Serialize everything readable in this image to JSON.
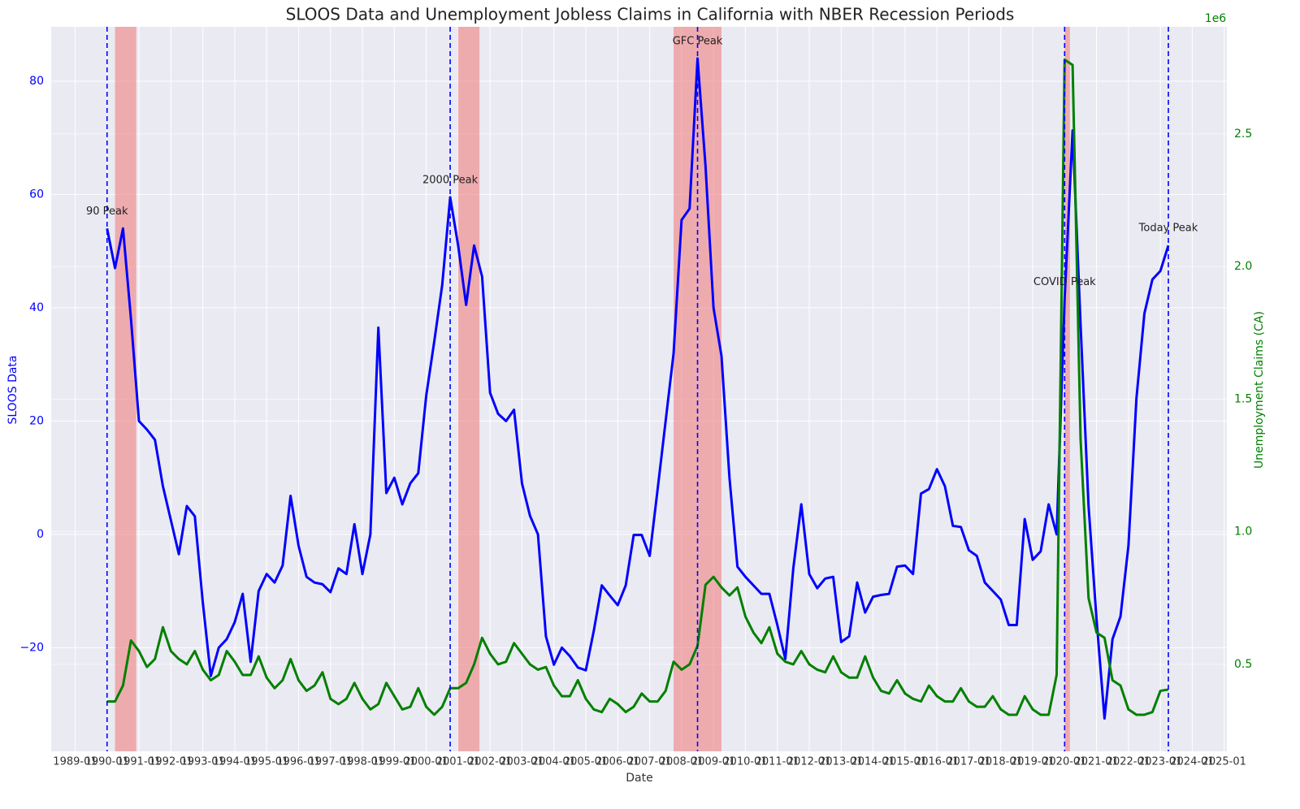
{
  "chart_data": {
    "type": "line",
    "title": "SLOOS Data and Unemployment Jobless Claims in California with NBER Recession Periods",
    "x_label": "Date",
    "y_label": "SLOOS Data",
    "y2_label": "Unemployment Claims (CA)",
    "y2_offset_label": "1e6",
    "background": "#eaeaf2",
    "grid": true,
    "xlim": [
      "1988-04",
      "2025-02"
    ],
    "xticks": [
      "1989-01",
      "1990-01",
      "1991-01",
      "1992-01",
      "1993-01",
      "1994-01",
      "1995-01",
      "1996-01",
      "1997-01",
      "1998-01",
      "1999-01",
      "2000-01",
      "2001-01",
      "2002-01",
      "2003-01",
      "2004-01",
      "2005-01",
      "2006-01",
      "2007-01",
      "2008-01",
      "2009-01",
      "2010-01",
      "2011-01",
      "2012-01",
      "2013-01",
      "2014-01",
      "2015-01",
      "2016-01",
      "2017-01",
      "2018-01",
      "2019-01",
      "2020-01",
      "2021-01",
      "2022-01",
      "2023-01",
      "2024-01",
      "2025-01"
    ],
    "ylim": [
      -38.3,
      89.6
    ],
    "yticks": [
      {
        "value": -20,
        "label": "−20"
      },
      0,
      20,
      40,
      60,
      80
    ],
    "y2lim": [
      0.172,
      2.904
    ],
    "y2ticks": [
      0.5,
      {
        "value": 1,
        "label": "1.0"
      },
      1.5,
      {
        "value": 2,
        "label": "2.0"
      },
      2.5
    ],
    "x": [
      "1990-01",
      "1990-04",
      "1990-07",
      "1990-10",
      "1991-01",
      "1991-04",
      "1991-07",
      "1991-10",
      "1992-01",
      "1992-04",
      "1992-07",
      "1992-10",
      "1993-01",
      "1993-04",
      "1993-07",
      "1993-10",
      "1994-01",
      "1994-04",
      "1994-07",
      "1994-10",
      "1995-01",
      "1995-04",
      "1995-07",
      "1995-10",
      "1996-01",
      "1996-04",
      "1996-07",
      "1996-10",
      "1997-01",
      "1997-04",
      "1997-07",
      "1997-10",
      "1998-01",
      "1998-04",
      "1998-07",
      "1998-10",
      "1999-01",
      "1999-04",
      "1999-07",
      "1999-10",
      "2000-01",
      "2000-04",
      "2000-07",
      "2000-10",
      "2001-01",
      "2001-04",
      "2001-07",
      "2001-10",
      "2002-01",
      "2002-04",
      "2002-07",
      "2002-10",
      "2003-01",
      "2003-04",
      "2003-07",
      "2003-10",
      "2004-01",
      "2004-04",
      "2004-07",
      "2004-10",
      "2005-01",
      "2005-04",
      "2005-07",
      "2005-10",
      "2006-01",
      "2006-04",
      "2006-07",
      "2006-10",
      "2007-01",
      "2007-04",
      "2007-07",
      "2007-10",
      "2008-01",
      "2008-04",
      "2008-07",
      "2008-10",
      "2009-01",
      "2009-04",
      "2009-07",
      "2009-10",
      "2010-01",
      "2010-04",
      "2010-07",
      "2010-10",
      "2011-01",
      "2011-04",
      "2011-07",
      "2011-10",
      "2012-01",
      "2012-04",
      "2012-07",
      "2012-10",
      "2013-01",
      "2013-04",
      "2013-07",
      "2013-10",
      "2014-01",
      "2014-04",
      "2014-07",
      "2014-10",
      "2015-01",
      "2015-04",
      "2015-07",
      "2015-10",
      "2016-01",
      "2016-04",
      "2016-07",
      "2016-10",
      "2017-01",
      "2017-04",
      "2017-07",
      "2017-10",
      "2018-01",
      "2018-04",
      "2018-07",
      "2018-10",
      "2019-01",
      "2019-04",
      "2019-07",
      "2019-10",
      "2020-01",
      "2020-04",
      "2020-07",
      "2020-10",
      "2021-01",
      "2021-04",
      "2021-07",
      "2021-10",
      "2022-01",
      "2022-04",
      "2022-07",
      "2022-10",
      "2023-01",
      "2023-04"
    ],
    "series": [
      {
        "name": "SLOOS Data",
        "color": "#0000ff",
        "axis": "y",
        "values": [
          54,
          47,
          54,
          38,
          20,
          18.5,
          16.7,
          8.5,
          2.5,
          -3.5,
          5,
          3.2,
          -12,
          -25,
          -20,
          -18.5,
          -15.5,
          -10.5,
          -22.5,
          -10,
          -7,
          -8.5,
          -5.5,
          6.8,
          -2,
          -7.5,
          -8.5,
          -8.8,
          -10.2,
          -6,
          -7,
          1.8,
          -7,
          0,
          36.5,
          7.3,
          10,
          5.3,
          9,
          10.8,
          24.5,
          34,
          44,
          59.5,
          51,
          40.5,
          51,
          45.5,
          25,
          21.3,
          20,
          22,
          9,
          3.3,
          0,
          -18,
          -23,
          -20,
          -21.5,
          -23.5,
          -24,
          -17,
          -9,
          -10.8,
          -12.5,
          -9,
          -0.1,
          -0.1,
          -3.8,
          8,
          20,
          32,
          55.5,
          57.5,
          84,
          65,
          40,
          31.5,
          10,
          -5.7,
          -7.5,
          -9,
          -10.5,
          -10.5,
          -16,
          -22,
          -6,
          5.3,
          -7,
          -9.5,
          -7.8,
          -7.5,
          -19,
          -18,
          -8.5,
          -13.8,
          -11,
          -10.7,
          -10.5,
          -5.7,
          -5.5,
          -7,
          7.2,
          8,
          11.5,
          8.5,
          1.5,
          1.3,
          -2.8,
          -3.8,
          -8.5,
          -10,
          -11.5,
          -16,
          -16,
          2.7,
          -4.5,
          -3,
          5.3,
          0,
          41.5,
          71.3,
          37,
          5,
          -15,
          -32.5,
          -18.5,
          -14.5,
          -2,
          24,
          39,
          45,
          46.5,
          51
        ]
      },
      {
        "name": "Unemployment Claims (CA)",
        "color": "#008000",
        "axis": "y2",
        "values": [
          0.36,
          0.36,
          0.42,
          0.59,
          0.55,
          0.49,
          0.52,
          0.64,
          0.55,
          0.52,
          0.5,
          0.55,
          0.48,
          0.44,
          0.46,
          0.55,
          0.51,
          0.46,
          0.46,
          0.53,
          0.45,
          0.41,
          0.44,
          0.52,
          0.44,
          0.4,
          0.42,
          0.47,
          0.37,
          0.35,
          0.37,
          0.43,
          0.37,
          0.33,
          0.35,
          0.43,
          0.38,
          0.33,
          0.34,
          0.41,
          0.34,
          0.31,
          0.34,
          0.41,
          0.41,
          0.43,
          0.5,
          0.6,
          0.54,
          0.5,
          0.51,
          0.58,
          0.54,
          0.5,
          0.48,
          0.49,
          0.42,
          0.38,
          0.38,
          0.44,
          0.37,
          0.33,
          0.32,
          0.37,
          0.35,
          0.32,
          0.34,
          0.39,
          0.36,
          0.36,
          0.4,
          0.51,
          0.48,
          0.5,
          0.57,
          0.8,
          0.83,
          0.79,
          0.76,
          0.79,
          0.68,
          0.62,
          0.58,
          0.64,
          0.54,
          0.51,
          0.5,
          0.55,
          0.5,
          0.48,
          0.47,
          0.53,
          0.47,
          0.45,
          0.45,
          0.53,
          0.45,
          0.4,
          0.39,
          0.44,
          0.39,
          0.37,
          0.36,
          0.42,
          0.38,
          0.36,
          0.36,
          0.41,
          0.36,
          0.34,
          0.34,
          0.38,
          0.33,
          0.31,
          0.31,
          0.38,
          0.33,
          0.31,
          0.31,
          0.46,
          2.78,
          2.76,
          1.35,
          0.75,
          0.62,
          0.6,
          0.44,
          0.42,
          0.33,
          0.31,
          0.31,
          0.32,
          0.4,
          0.405
        ]
      }
    ],
    "recessions": {
      "color": "#f08080",
      "periods": [
        {
          "start": "1990-04",
          "end": "1990-12"
        },
        {
          "start": "2001-01",
          "end": "2001-09"
        },
        {
          "start": "2007-10",
          "end": "2009-04"
        },
        {
          "start": "2020-01",
          "end": "2020-03"
        }
      ]
    },
    "annotations": [
      {
        "text": "90 Peak",
        "x": "1990-01"
      },
      {
        "text": "2000 Peak",
        "x": "2000-10"
      },
      {
        "text": "GFC Peak",
        "x": "2008-07"
      },
      {
        "text": "COVID Peak",
        "x": "2020-01"
      },
      {
        "text": "Today Peak",
        "x": "2023-04"
      }
    ]
  }
}
